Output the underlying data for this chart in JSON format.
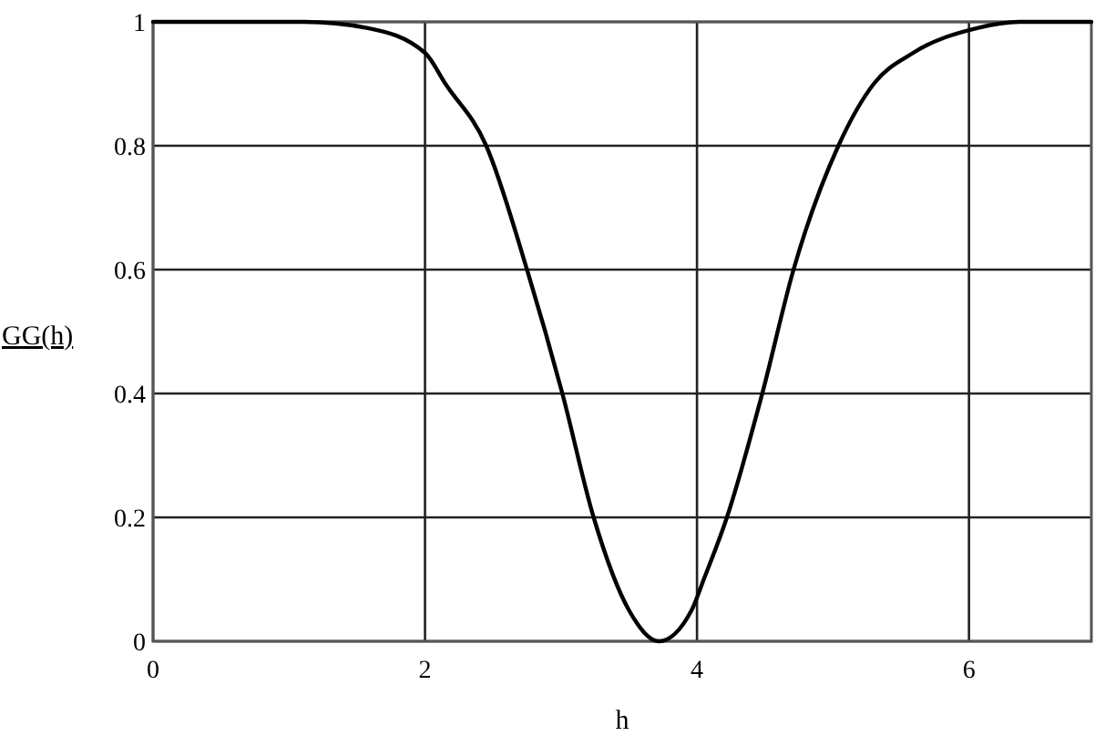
{
  "chart_data": {
    "type": "line",
    "xlabel": "h",
    "ylabel": "GG(h)",
    "xlim": [
      0,
      6.9
    ],
    "xticks": [
      0,
      2,
      4,
      6
    ],
    "ylim": [
      0,
      1
    ],
    "yticks": [
      0,
      0.2,
      0.4,
      0.6,
      0.8,
      1
    ],
    "grid": true,
    "series": [
      {
        "color": "#000000",
        "x": [
          0,
          0.6,
          1.11,
          1.58,
          2,
          2.15,
          2.45,
          2.75,
          3.01,
          3.24,
          3.5,
          3.72,
          3.96,
          4.05,
          4.22,
          4.48,
          4.71,
          5.04,
          5.3,
          5.59,
          6.06,
          6.37,
          6.9
        ],
        "values": [
          1,
          1,
          1,
          0.99,
          0.95,
          0.9,
          0.8,
          0.6,
          0.4,
          0.2,
          0.05,
          0,
          0.05,
          0.1,
          0.2,
          0.4,
          0.6,
          0.8,
          0.9,
          0.95,
          0.99,
          1,
          1
        ]
      }
    ]
  }
}
